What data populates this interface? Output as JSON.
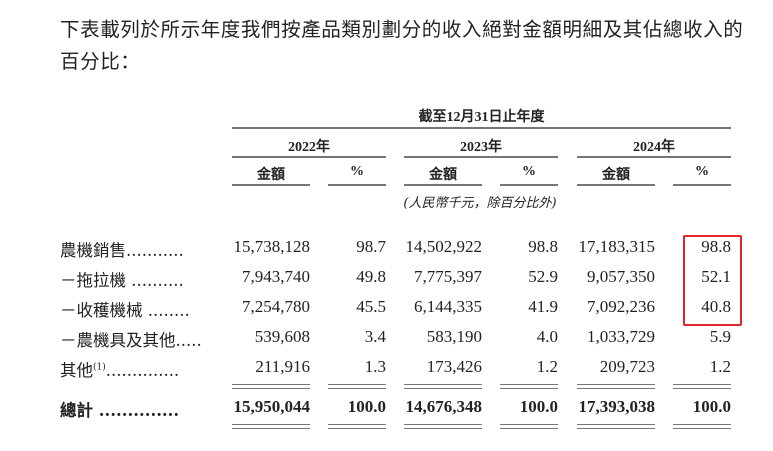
{
  "intro": "下表載列於所示年度我們按產品類別劃分的收入絕對金額明細及其佔總收入的百分比：",
  "header": {
    "period": "截至12月31日止年度",
    "years": [
      "2022年",
      "2023年",
      "2024年"
    ],
    "amount_label": "金額",
    "pct_label": "%",
    "unit_note": "(人民幣千元，除百分比外)"
  },
  "rows": [
    {
      "label": "農機銷售",
      "dots": "...........",
      "values": [
        "15,738,128",
        "98.7",
        "14,502,922",
        "98.8",
        "17,183,315",
        "98.8"
      ]
    },
    {
      "label": "－拖拉機",
      "dots": " ..........",
      "values": [
        "7,943,740",
        "49.8",
        "7,775,397",
        "52.9",
        "9,057,350",
        "52.1"
      ]
    },
    {
      "label": "－收穫機械",
      "dots": " ........",
      "values": [
        "7,254,780",
        "45.5",
        "6,144,335",
        "41.9",
        "7,092,236",
        "40.8"
      ]
    },
    {
      "label": "－農機具及其他",
      "dots": ".....",
      "values": [
        "539,608",
        "3.4",
        "583,190",
        "4.0",
        "1,033,729",
        "5.9"
      ]
    },
    {
      "label": "其他",
      "sup": "(1)",
      "dots": "..............",
      "values": [
        "211,916",
        "1.3",
        "173,426",
        "1.2",
        "209,723",
        "1.2"
      ]
    },
    {
      "label": "總計",
      "dots": " ..............",
      "values": [
        "15,950,044",
        "100.0",
        "14,676,348",
        "100.0",
        "17,393,038",
        "100.0"
      ]
    }
  ],
  "highlight_color": "#e0262a"
}
